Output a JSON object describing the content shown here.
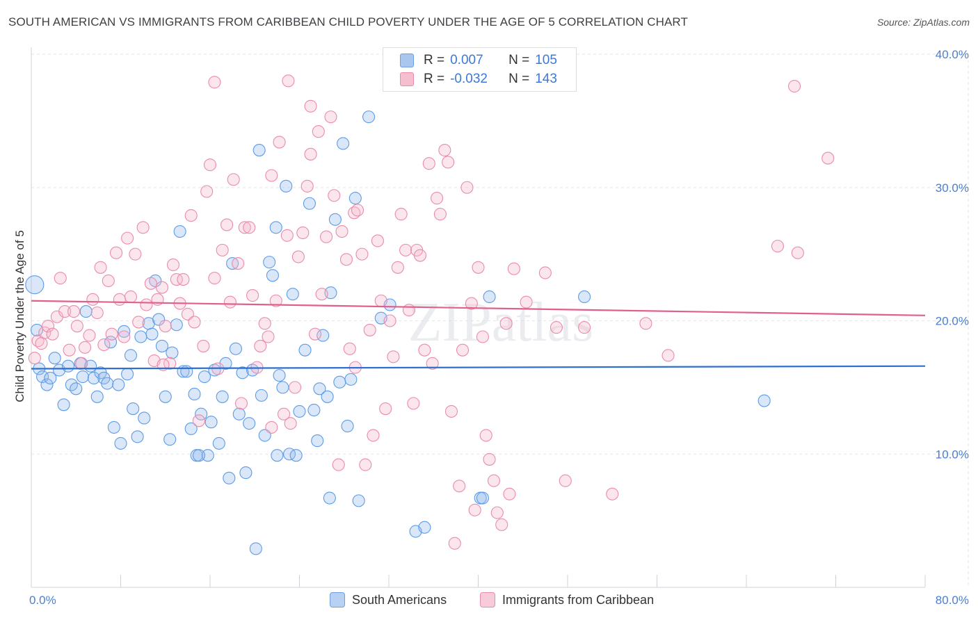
{
  "title": "SOUTH AMERICAN VS IMMIGRANTS FROM CARIBBEAN CHILD POVERTY UNDER THE AGE OF 5 CORRELATION CHART",
  "source": "Source: ZipAtlas.com",
  "watermark": "ZIPatlas",
  "legend": {
    "r_label": "R =",
    "n_label": "N =",
    "rows": [
      {
        "r": "0.007",
        "n": "105",
        "fill": "#a9c7ee",
        "stroke": "#6f9fe0"
      },
      {
        "r": "-0.032",
        "n": "143",
        "fill": "#f6bfd0",
        "stroke": "#e98bab"
      }
    ]
  },
  "bottom_legend": [
    {
      "label": "South Americans",
      "fill": "#b8d0f2",
      "stroke": "#6f9fe0"
    },
    {
      "label": "Immigrants from Caribbean",
      "fill": "#f8cbd9",
      "stroke": "#e98bab"
    }
  ],
  "chart_data": {
    "type": "scatter",
    "ylabel": "Child Poverty Under the Age of 5",
    "xlim": [
      0,
      80
    ],
    "ylim": [
      0,
      40
    ],
    "x_tick_labels": [
      "0.0%",
      "80.0%"
    ],
    "y_ticks": [
      {
        "value": 10,
        "label": "10.0%"
      },
      {
        "value": 20,
        "label": "20.0%"
      },
      {
        "value": 30,
        "label": "30.0%"
      },
      {
        "value": 40,
        "label": "40.0%"
      }
    ],
    "grid": true,
    "series": [
      {
        "name": "South Americans",
        "color": "#5b9be8",
        "fill": "rgba(150,186,236,0.35)",
        "line_color": "#2f6fd0",
        "trend": {
          "x": [
            0,
            80
          ],
          "y": [
            16.4,
            16.6
          ]
        },
        "points": [
          [
            0.3,
            22.7
          ],
          [
            0.5,
            19.3
          ],
          [
            0.7,
            16.4
          ],
          [
            1.0,
            15.8
          ],
          [
            1.4,
            15.2
          ],
          [
            1.7,
            15.7
          ],
          [
            2.1,
            17.2
          ],
          [
            2.5,
            16.3
          ],
          [
            2.9,
            13.7
          ],
          [
            3.3,
            16.6
          ],
          [
            3.6,
            15.2
          ],
          [
            4.0,
            14.9
          ],
          [
            4.4,
            16.8
          ],
          [
            4.6,
            15.8
          ],
          [
            4.9,
            20.7
          ],
          [
            5.3,
            16.6
          ],
          [
            5.6,
            15.7
          ],
          [
            5.9,
            14.3
          ],
          [
            6.2,
            16.1
          ],
          [
            6.5,
            15.7
          ],
          [
            6.8,
            15.3
          ],
          [
            7.1,
            18.4
          ],
          [
            7.4,
            12.0
          ],
          [
            7.8,
            15.2
          ],
          [
            8.0,
            10.8
          ],
          [
            8.3,
            19.2
          ],
          [
            8.6,
            16.0
          ],
          [
            8.9,
            17.4
          ],
          [
            9.1,
            13.4
          ],
          [
            9.5,
            11.3
          ],
          [
            9.8,
            18.8
          ],
          [
            10.1,
            12.7
          ],
          [
            10.5,
            19.8
          ],
          [
            10.8,
            19.0
          ],
          [
            11.1,
            23.0
          ],
          [
            11.4,
            20.1
          ],
          [
            11.7,
            18.1
          ],
          [
            12.0,
            14.3
          ],
          [
            12.4,
            11.1
          ],
          [
            12.6,
            17.6
          ],
          [
            13.0,
            19.7
          ],
          [
            13.3,
            26.7
          ],
          [
            13.6,
            16.2
          ],
          [
            13.9,
            16.2
          ],
          [
            14.3,
            11.9
          ],
          [
            14.6,
            14.5
          ],
          [
            14.8,
            9.9
          ],
          [
            15.2,
            13.0
          ],
          [
            15.5,
            15.8
          ],
          [
            15.8,
            9.9
          ],
          [
            16.1,
            12.4
          ],
          [
            16.4,
            16.3
          ],
          [
            16.8,
            10.8
          ],
          [
            17.1,
            14.3
          ],
          [
            17.4,
            16.8
          ],
          [
            17.7,
            8.2
          ],
          [
            18.0,
            24.3
          ],
          [
            18.3,
            17.9
          ],
          [
            18.6,
            13.0
          ],
          [
            18.9,
            16.1
          ],
          [
            19.2,
            8.6
          ],
          [
            19.5,
            12.3
          ],
          [
            19.8,
            16.3
          ],
          [
            20.1,
            2.9
          ],
          [
            20.4,
            32.8
          ],
          [
            20.6,
            14.4
          ],
          [
            20.9,
            11.4
          ],
          [
            21.3,
            24.4
          ],
          [
            21.6,
            23.4
          ],
          [
            21.9,
            27.0
          ],
          [
            22.2,
            15.9
          ],
          [
            22.5,
            15.0
          ],
          [
            22.8,
            30.1
          ],
          [
            23.1,
            10.0
          ],
          [
            23.4,
            22.0
          ],
          [
            23.7,
            9.9
          ],
          [
            24.0,
            13.2
          ],
          [
            24.5,
            17.8
          ],
          [
            24.9,
            28.8
          ],
          [
            25.3,
            13.3
          ],
          [
            25.6,
            11.0
          ],
          [
            25.8,
            14.9
          ],
          [
            26.1,
            18.9
          ],
          [
            26.5,
            14.3
          ],
          [
            26.8,
            22.1
          ],
          [
            27.2,
            27.6
          ],
          [
            27.6,
            15.4
          ],
          [
            27.9,
            33.3
          ],
          [
            28.3,
            12.1
          ],
          [
            28.6,
            15.6
          ],
          [
            29.0,
            29.2
          ],
          [
            29.3,
            6.5
          ],
          [
            30.2,
            35.3
          ],
          [
            31.3,
            20.2
          ],
          [
            32.1,
            21.2
          ],
          [
            34.4,
            4.2
          ],
          [
            35.2,
            4.5
          ],
          [
            40.2,
            6.7
          ],
          [
            40.4,
            6.7
          ],
          [
            41.0,
            21.8
          ],
          [
            49.5,
            21.8
          ],
          [
            65.6,
            14.0
          ],
          [
            26.7,
            6.7
          ],
          [
            22.0,
            9.9
          ],
          [
            15.0,
            9.9
          ]
        ]
      },
      {
        "name": "Immigrants from Caribbean",
        "color": "#e98bab",
        "fill": "rgba(245,182,202,0.35)",
        "line_color": "#e0608a",
        "trend": {
          "x": [
            0,
            80
          ],
          "y": [
            21.5,
            20.4
          ]
        },
        "points": [
          [
            0.3,
            17.2
          ],
          [
            0.6,
            18.5
          ],
          [
            0.9,
            18.3
          ],
          [
            1.2,
            19.1
          ],
          [
            1.5,
            19.6
          ],
          [
            1.9,
            19.0
          ],
          [
            2.3,
            20.3
          ],
          [
            2.6,
            23.2
          ],
          [
            3.0,
            20.7
          ],
          [
            3.4,
            17.8
          ],
          [
            3.8,
            20.7
          ],
          [
            4.1,
            19.6
          ],
          [
            4.5,
            16.8
          ],
          [
            4.8,
            18.0
          ],
          [
            5.2,
            18.9
          ],
          [
            5.5,
            21.6
          ],
          [
            5.9,
            20.6
          ],
          [
            6.2,
            24.0
          ],
          [
            6.5,
            18.2
          ],
          [
            6.9,
            23.0
          ],
          [
            7.2,
            19.0
          ],
          [
            7.6,
            25.1
          ],
          [
            7.9,
            21.6
          ],
          [
            8.3,
            18.8
          ],
          [
            8.6,
            26.2
          ],
          [
            8.9,
            21.8
          ],
          [
            9.3,
            25.0
          ],
          [
            9.6,
            19.9
          ],
          [
            10.0,
            27.0
          ],
          [
            10.3,
            21.2
          ],
          [
            10.7,
            22.8
          ],
          [
            11.0,
            17.0
          ],
          [
            11.3,
            21.6
          ],
          [
            11.7,
            22.5
          ],
          [
            12.0,
            19.6
          ],
          [
            12.4,
            16.8
          ],
          [
            12.7,
            24.2
          ],
          [
            13.0,
            23.1
          ],
          [
            13.3,
            21.3
          ],
          [
            13.6,
            23.1
          ],
          [
            14.0,
            20.5
          ],
          [
            14.3,
            27.9
          ],
          [
            14.6,
            19.9
          ],
          [
            15.0,
            12.5
          ],
          [
            15.4,
            18.1
          ],
          [
            15.7,
            29.7
          ],
          [
            16.0,
            31.7
          ],
          [
            16.4,
            23.2
          ],
          [
            16.7,
            16.4
          ],
          [
            17.1,
            25.3
          ],
          [
            17.5,
            27.2
          ],
          [
            17.8,
            21.4
          ],
          [
            18.1,
            30.6
          ],
          [
            18.5,
            24.3
          ],
          [
            18.8,
            13.8
          ],
          [
            19.1,
            27.0
          ],
          [
            19.5,
            27.0
          ],
          [
            19.8,
            21.9
          ],
          [
            20.2,
            16.5
          ],
          [
            20.5,
            18.1
          ],
          [
            20.9,
            19.8
          ],
          [
            21.2,
            18.8
          ],
          [
            21.5,
            30.9
          ],
          [
            21.9,
            21.5
          ],
          [
            22.2,
            33.4
          ],
          [
            22.6,
            13.0
          ],
          [
            22.9,
            26.4
          ],
          [
            23.2,
            12.3
          ],
          [
            23.6,
            15.0
          ],
          [
            23.9,
            24.8
          ],
          [
            24.3,
            26.6
          ],
          [
            24.7,
            30.1
          ],
          [
            25.0,
            32.5
          ],
          [
            25.4,
            19.0
          ],
          [
            25.7,
            34.2
          ],
          [
            26.0,
            22.0
          ],
          [
            26.4,
            26.3
          ],
          [
            26.8,
            35.3
          ],
          [
            27.1,
            29.4
          ],
          [
            27.5,
            9.2
          ],
          [
            27.8,
            26.7
          ],
          [
            28.2,
            24.6
          ],
          [
            28.5,
            17.9
          ],
          [
            28.9,
            28.1
          ],
          [
            29.2,
            28.3
          ],
          [
            29.6,
            25.0
          ],
          [
            29.9,
            9.2
          ],
          [
            30.3,
            19.3
          ],
          [
            30.6,
            11.4
          ],
          [
            31.0,
            26.0
          ],
          [
            31.3,
            21.5
          ],
          [
            31.7,
            13.4
          ],
          [
            32.1,
            20.0
          ],
          [
            32.4,
            17.3
          ],
          [
            32.8,
            24.0
          ],
          [
            33.1,
            28.0
          ],
          [
            33.5,
            25.3
          ],
          [
            33.8,
            20.8
          ],
          [
            34.2,
            13.8
          ],
          [
            34.5,
            25.3
          ],
          [
            34.8,
            24.9
          ],
          [
            35.2,
            17.8
          ],
          [
            35.6,
            31.8
          ],
          [
            35.9,
            16.8
          ],
          [
            36.3,
            29.2
          ],
          [
            36.6,
            28.0
          ],
          [
            37.0,
            32.8
          ],
          [
            37.3,
            31.9
          ],
          [
            37.6,
            13.2
          ],
          [
            37.9,
            3.3
          ],
          [
            38.3,
            7.6
          ],
          [
            38.6,
            17.8
          ],
          [
            39.0,
            30.0
          ],
          [
            39.4,
            21.3
          ],
          [
            39.7,
            5.8
          ],
          [
            40.0,
            24.0
          ],
          [
            40.4,
            18.8
          ],
          [
            40.7,
            11.4
          ],
          [
            41.0,
            9.6
          ],
          [
            41.4,
            8.0
          ],
          [
            41.7,
            5.6
          ],
          [
            42.1,
            4.7
          ],
          [
            42.5,
            19.8
          ],
          [
            42.8,
            7.0
          ],
          [
            43.2,
            23.9
          ],
          [
            44.3,
            21.4
          ],
          [
            46.0,
            23.6
          ],
          [
            47.0,
            19.5
          ],
          [
            47.8,
            8.0
          ],
          [
            49.5,
            19.5
          ],
          [
            52.0,
            7.0
          ],
          [
            55.0,
            19.8
          ],
          [
            57.0,
            17.4
          ],
          [
            66.8,
            25.6
          ],
          [
            68.3,
            37.6
          ],
          [
            68.6,
            25.1
          ],
          [
            71.3,
            32.2
          ],
          [
            16.4,
            37.9
          ],
          [
            25.0,
            36.1
          ],
          [
            21.5,
            12.0
          ],
          [
            11.8,
            16.7
          ],
          [
            23.0,
            38.0
          ],
          [
            29.0,
            16.5
          ]
        ]
      }
    ]
  }
}
